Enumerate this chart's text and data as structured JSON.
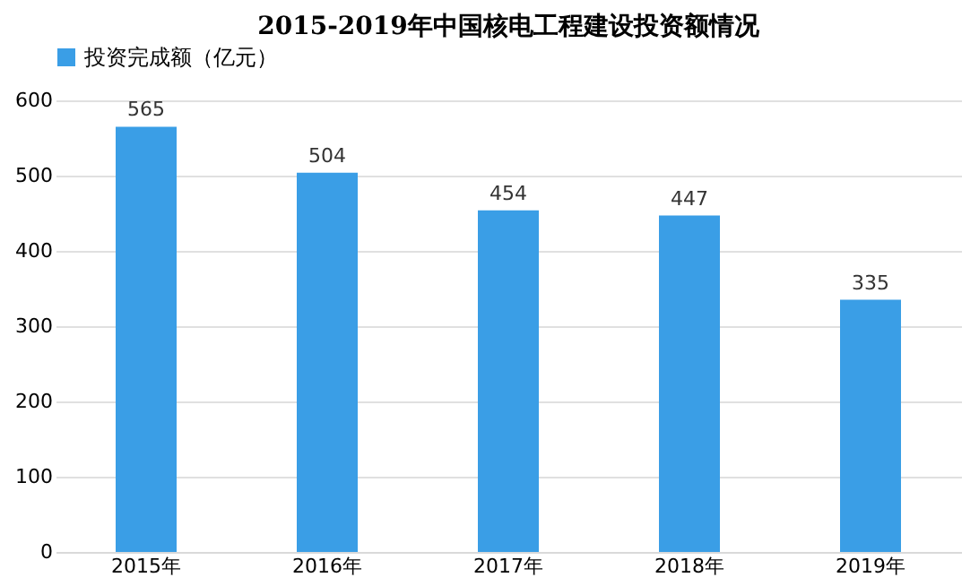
{
  "chart_data": {
    "type": "bar",
    "title": "2015-2019年中国核电工程建设投资额情况",
    "categories": [
      "2015年",
      "2016年",
      "2017年",
      "2018年",
      "2019年"
    ],
    "series": [
      {
        "name": "投资完成额（亿元）",
        "color": "#3a9ee6",
        "values": [
          565,
          504,
          454,
          447,
          335
        ]
      }
    ],
    "ylim": [
      0,
      600
    ],
    "yticks": [
      0,
      100,
      200,
      300,
      400,
      500,
      600
    ],
    "grid": "y",
    "legend": "top",
    "data_labels": true
  }
}
